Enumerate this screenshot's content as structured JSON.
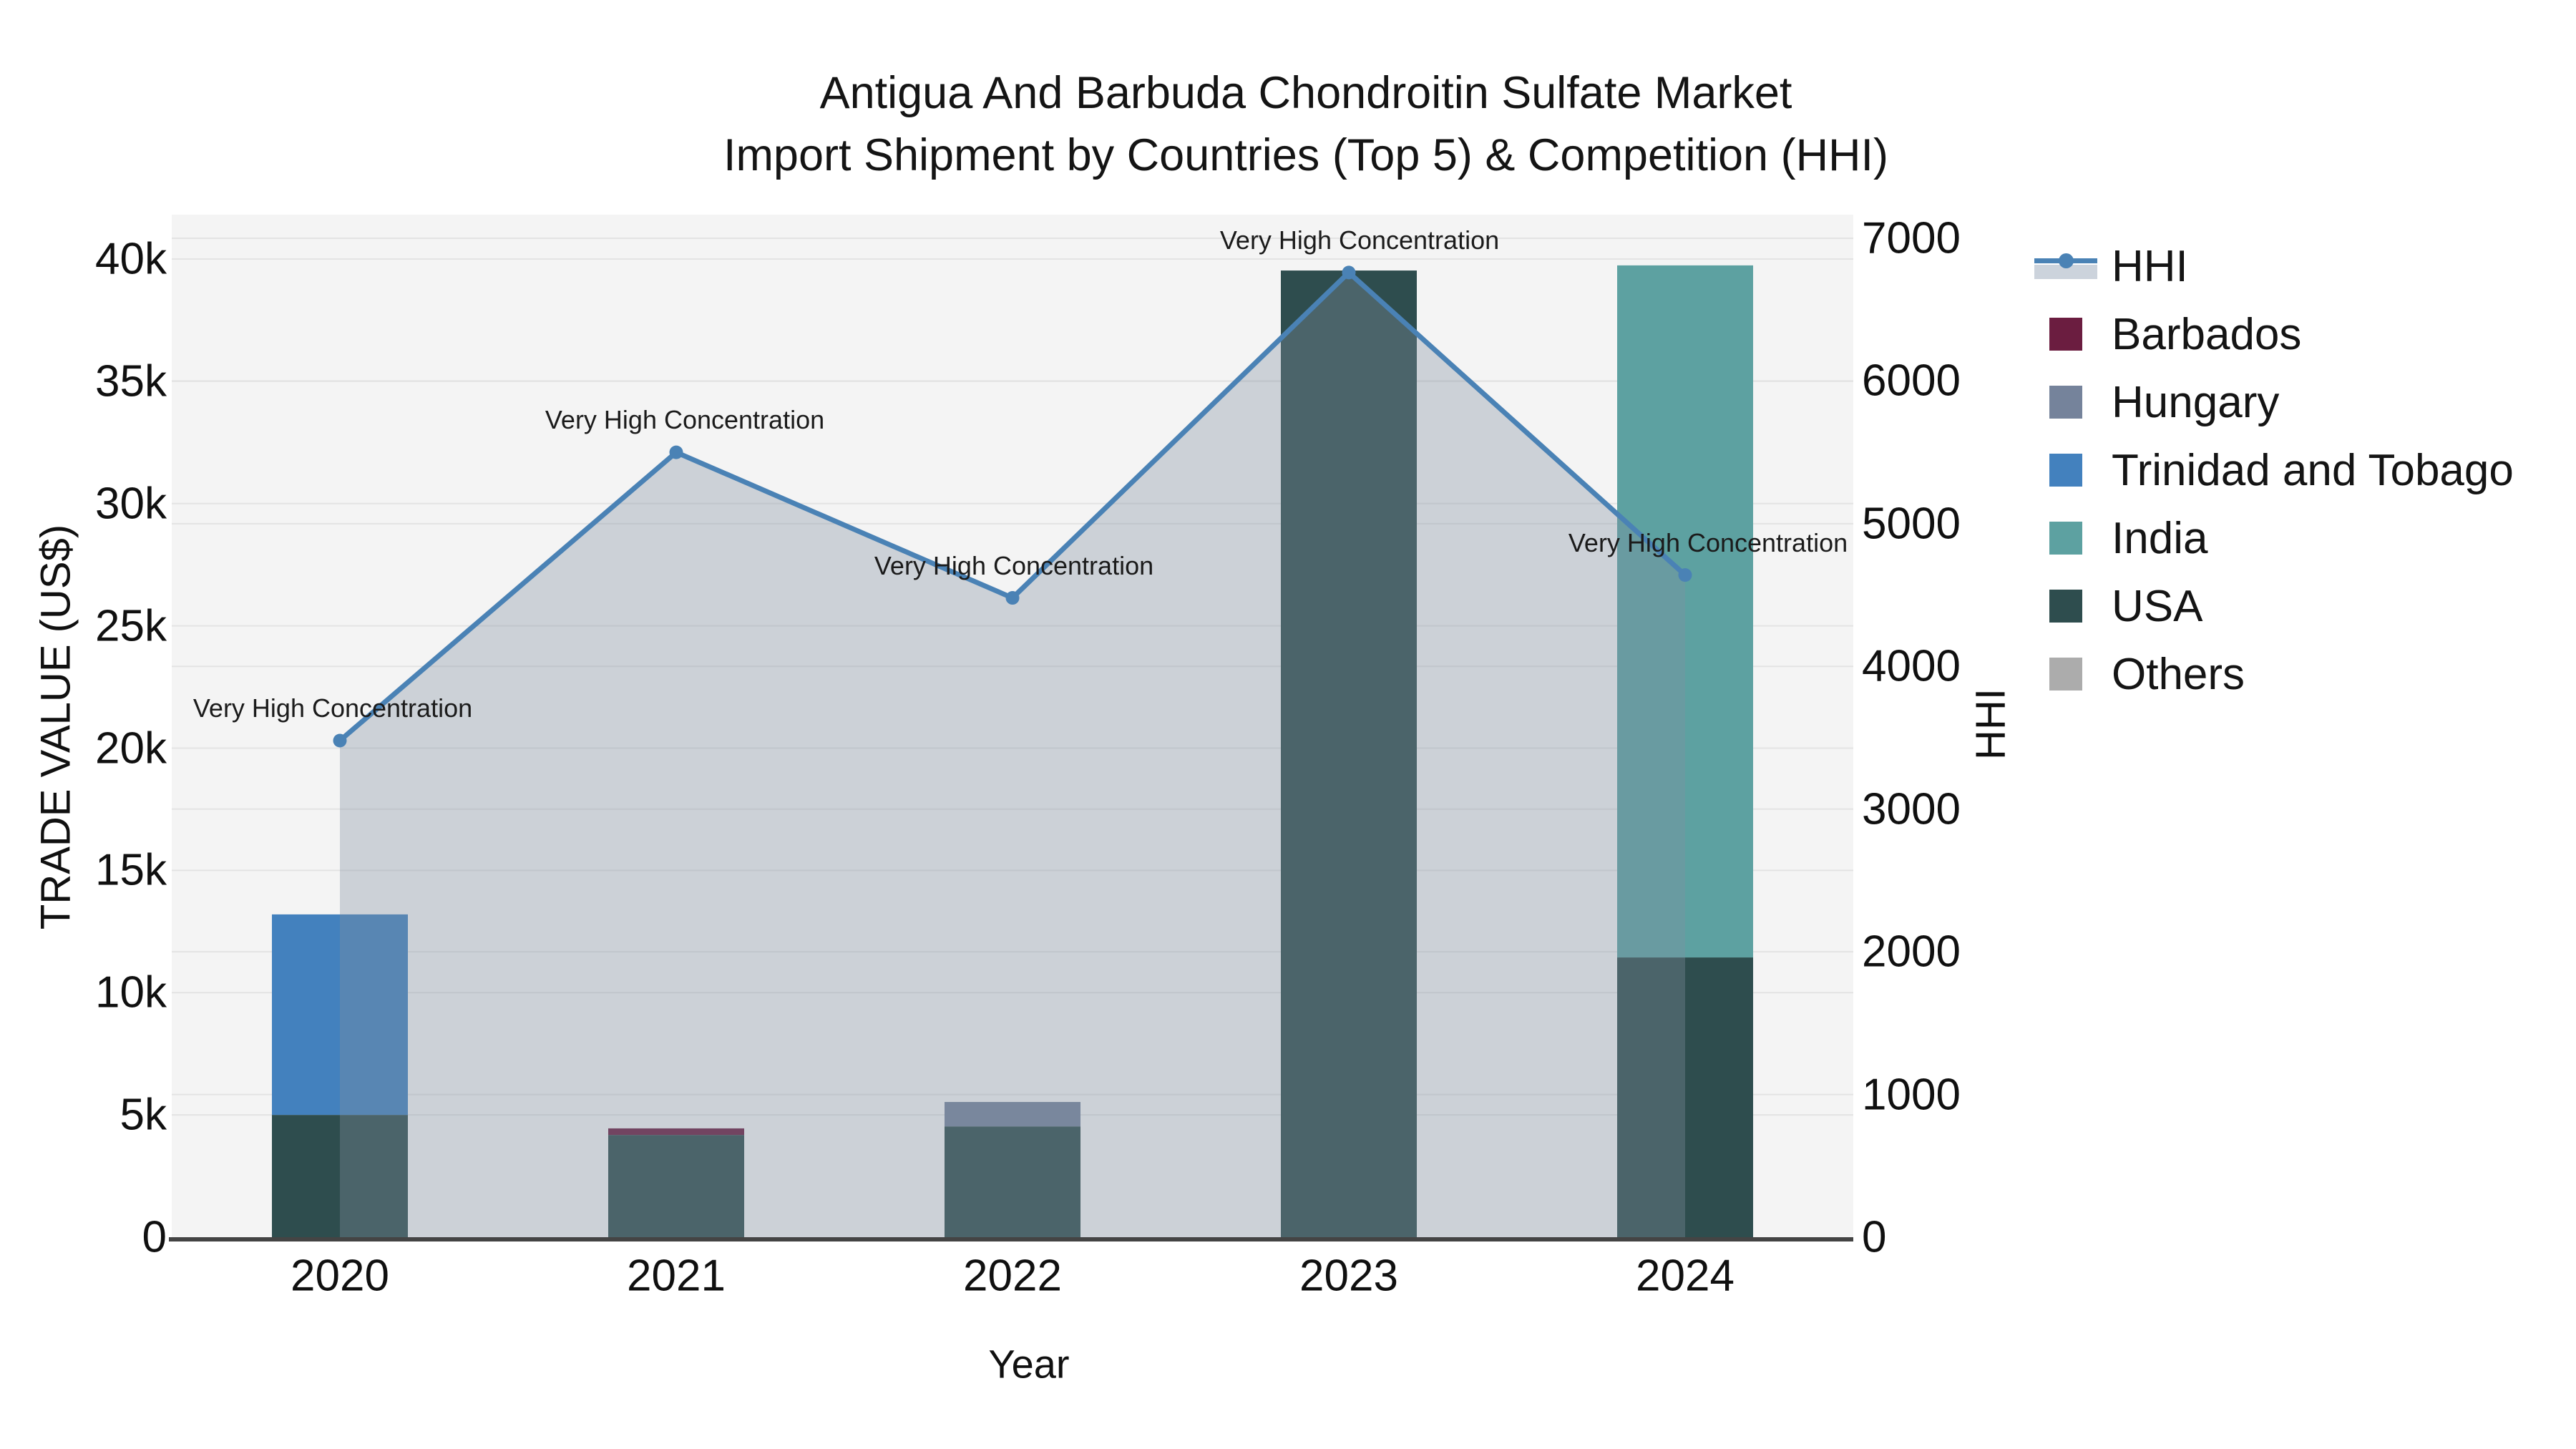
{
  "title": {
    "line1": "Antigua And Barbuda Chondroitin Sulfate Market",
    "line2": "Import Shipment by Countries (Top 5) & Competition (HHI)"
  },
  "chart_data": {
    "type": "combo-stacked-bar-line",
    "title": "Antigua And Barbuda Chondroitin Sulfate Market Import Shipment by Countries (Top 5) & Competition (HHI)",
    "x_title": "Year",
    "categories": [
      "2020",
      "2021",
      "2022",
      "2023",
      "2024"
    ],
    "y_left": {
      "title": "TRADE VALUE (US$)",
      "tick_labels": [
        "0",
        "5k",
        "10k",
        "15k",
        "20k",
        "25k",
        "30k",
        "35k",
        "40k"
      ],
      "tick_values": [
        0,
        5000,
        10000,
        15000,
        20000,
        25000,
        30000,
        35000,
        40000
      ],
      "range": [
        0,
        41870
      ],
      "grid": true
    },
    "y_right": {
      "title": "HHI",
      "tick_labels": [
        "0",
        "1000",
        "2000",
        "3000",
        "4000",
        "5000",
        "6000",
        "7000"
      ],
      "tick_values": [
        0,
        1000,
        2000,
        3000,
        4000,
        5000,
        6000,
        7000
      ],
      "range": [
        0,
        7165
      ],
      "grid": true
    },
    "bar_series": [
      {
        "name": "Barbados",
        "color": "#6b1d40",
        "values": [
          0,
          270,
          0,
          0,
          0
        ]
      },
      {
        "name": "Hungary",
        "color": "#75839b",
        "values": [
          0,
          0,
          1000,
          0,
          0
        ]
      },
      {
        "name": "Trinidad and Tobago",
        "color": "#4381be",
        "values": [
          8200,
          0,
          0,
          0,
          0
        ]
      },
      {
        "name": "India",
        "color": "#5da1a1",
        "values": [
          0,
          0,
          0,
          0,
          28300
        ]
      },
      {
        "name": "USA",
        "color": "#2e4d4e",
        "values": [
          5000,
          4180,
          4530,
          39530,
          11440
        ]
      },
      {
        "name": "Others",
        "color": "#acacac",
        "values": [
          0,
          0,
          0,
          0,
          0
        ]
      }
    ],
    "stack_order": [
      "USA",
      "Barbados",
      "Hungary",
      "Trinidad and Tobago",
      "India",
      "Others"
    ],
    "line_series": {
      "name": "HHI",
      "color": "#4a82b5",
      "fill_color": "rgba(128,144,160,0.35)",
      "values": [
        3480,
        5500,
        4480,
        6760,
        4640
      ]
    },
    "annotations": [
      "Very High Concentration",
      "Very High Concentration",
      "Very High Concentration",
      "Very High Concentration",
      "Very High Concentration"
    ],
    "legend_position": "right",
    "plot_bg": "#f4f4f4",
    "grid_color": "#e3e3e3",
    "axis_line_color": "#444444"
  }
}
